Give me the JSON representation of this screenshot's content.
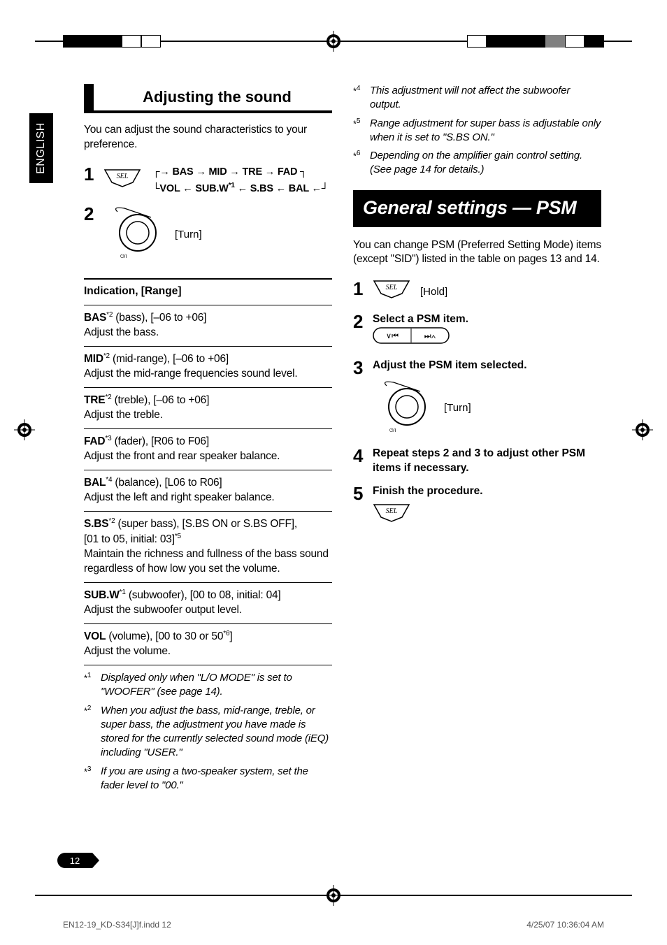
{
  "page": {
    "lang_tab": "ENGLISH",
    "page_number": "12",
    "footer_left": "EN12-19_KD-S34[J]f.indd   12",
    "footer_right": "4/25/07   10:36:04 AM"
  },
  "left": {
    "title": "Adjusting the sound",
    "intro": "You can adjust the sound characteristics to your preference.",
    "step1_num": "1",
    "step2_num": "2",
    "flow_line1_a": "BAS",
    "flow_line1_b": "MID",
    "flow_line1_c": "TRE",
    "flow_line1_d": "FAD",
    "flow_line2_a": "VOL",
    "flow_line2_b": "SUB.W",
    "flow_line2_b_sup": "*1",
    "flow_line2_c": "S.BS",
    "flow_line2_d": "BAL",
    "turn_label": "[Turn]",
    "indication_heading": "Indication, [Range]",
    "rows": [
      {
        "label": "BAS",
        "sup": "*2",
        "meta": " (bass), [–06 to +06]",
        "desc": "Adjust the bass."
      },
      {
        "label": "MID",
        "sup": "*2",
        "meta": " (mid-range), [–06 to +06]",
        "desc": "Adjust the mid-range frequencies sound level."
      },
      {
        "label": "TRE",
        "sup": "*2",
        "meta": " (treble), [–06 to +06]",
        "desc": "Adjust the treble."
      },
      {
        "label": "FAD",
        "sup": "*3",
        "meta": " (fader), [R06 to F06]",
        "desc": "Adjust the front and rear speaker balance."
      },
      {
        "label": "BAL",
        "sup": "*4",
        "meta": " (balance), [L06 to R06]",
        "desc": "Adjust the left and right speaker balance."
      },
      {
        "label": "S.BS",
        "sup": "*2",
        "meta": " (super bass), [S.BS ON or S.BS OFF],",
        "desc2": "[01 to 05, initial: 03]",
        "desc2_sup": "*5",
        "desc": "Maintain the richness and fullness of the bass sound regardless of how low you set the volume."
      },
      {
        "label": "SUB.W",
        "sup": "*1",
        "meta": " (subwoofer), [00 to 08, initial: 04]",
        "desc": "Adjust the subwoofer output level."
      },
      {
        "label": "VOL",
        "sup": "",
        "meta": " (volume), [00 to 30 or 50",
        "meta_sup": "*6",
        "meta2": "]",
        "desc": "Adjust the volume."
      }
    ],
    "footnotes": [
      {
        "mark": "*",
        "sup": "1",
        "text": "Displayed only when \"L/O MODE\" is set to \"WOOFER\" (see page 14)."
      },
      {
        "mark": "*",
        "sup": "2",
        "text": "When you adjust the bass, mid-range, treble, or super bass, the adjustment you have made is stored for the currently selected sound mode (iEQ) including \"USER.\""
      },
      {
        "mark": "*",
        "sup": "3",
        "text": "If you are using a two-speaker system, set the fader level to \"00.\""
      }
    ]
  },
  "right": {
    "top_footnotes": [
      {
        "mark": "*",
        "sup": "4",
        "text": "This adjustment will not affect the subwoofer output."
      },
      {
        "mark": "*",
        "sup": "5",
        "text": "Range adjustment for super bass is adjustable only when it is set to \"S.BS ON.\""
      },
      {
        "mark": "*",
        "sup": "6",
        "text": "Depending on the amplifier gain control setting. (See page 14 for details.)"
      }
    ],
    "banner": "General settings — PSM",
    "intro": "You can change PSM (Preferred Setting Mode) items (except \"SID\") listed in the table on pages 13 and 14.",
    "step1_num": "1",
    "step1_label": "[Hold]",
    "step2_num": "2",
    "step2_text": "Select a PSM item.",
    "step3_num": "3",
    "step3_text": "Adjust the PSM item selected.",
    "step3_turn": "[Turn]",
    "step4_num": "4",
    "step4_text": "Repeat steps 2 and 3 to adjust other PSM items if necessary.",
    "step5_num": "5",
    "step5_text": "Finish the procedure."
  },
  "colors": {
    "text": "#000000",
    "bg": "#ffffff",
    "banner_bg": "#000000",
    "banner_fg": "#ffffff",
    "footer": "#555555"
  }
}
